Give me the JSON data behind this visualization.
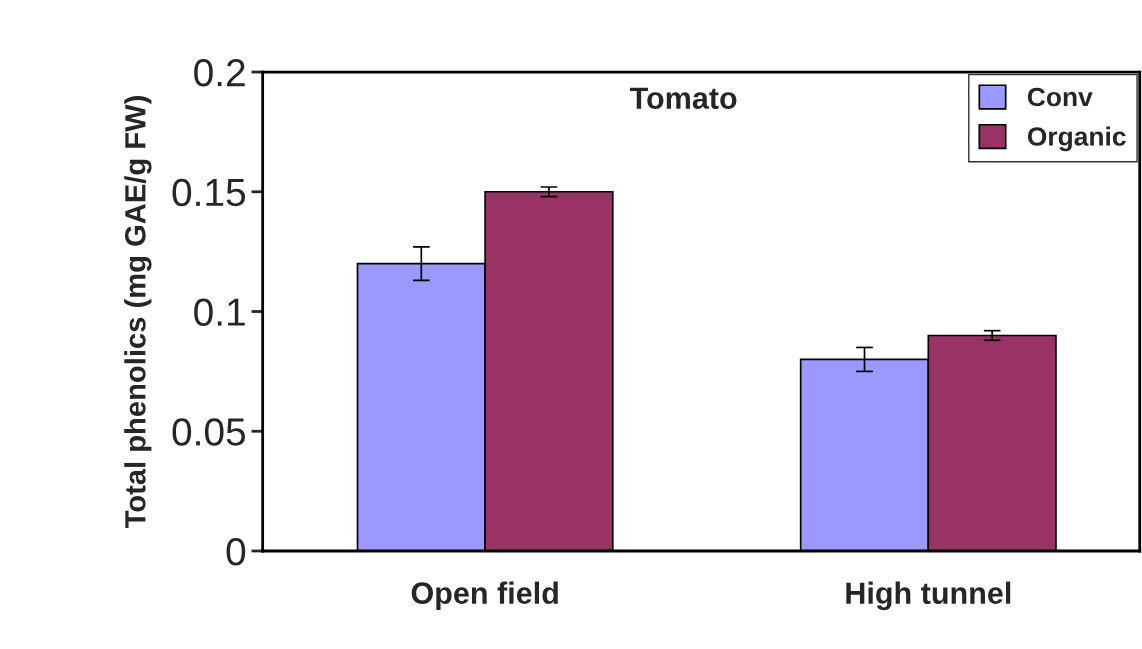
{
  "chart_data": {
    "type": "bar",
    "title": "Tomato",
    "ylabel": "Total phenolics (mg GAE/g FW)",
    "categories": [
      "Open field",
      "High tunnel"
    ],
    "series": [
      {
        "name": "Conv",
        "color": "#9999ff",
        "values": [
          0.12,
          0.08
        ],
        "errors": [
          0.007,
          0.005
        ]
      },
      {
        "name": "Organic",
        "color": "#993366",
        "values": [
          0.15,
          0.09
        ],
        "errors": [
          0.002,
          0.002
        ]
      }
    ],
    "ylim": [
      0,
      0.2
    ],
    "yticks": [
      0,
      0.05,
      0.1,
      0.15,
      0.2
    ],
    "grid": false,
    "legend": "top right"
  }
}
